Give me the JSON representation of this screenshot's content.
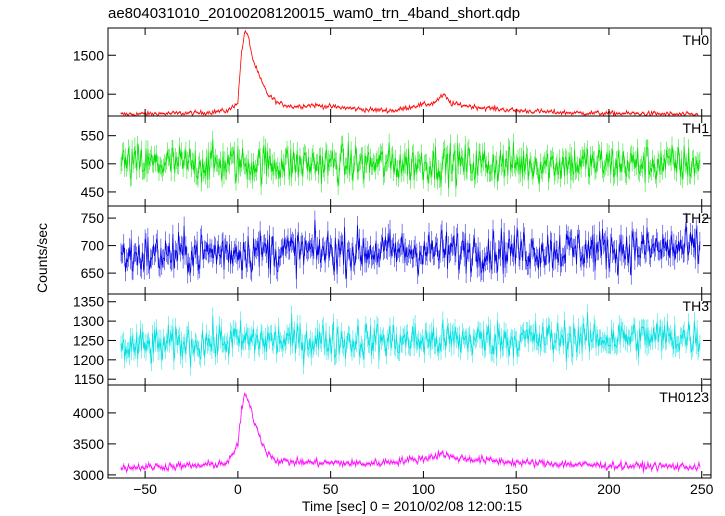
{
  "chart_data": {
    "type": "line",
    "title": "ae804031010_20100208120015_wam0_trn_4band_short.qdp",
    "xlabel": "Time [sec] 0 = 2010/02/08 12:00:15",
    "ylabel": "Counts/sec",
    "xlim": [
      -70,
      255
    ],
    "xticks": [
      -50,
      0,
      50,
      100,
      150,
      200,
      250
    ],
    "xtick_labels": [
      "−50",
      "0",
      "50",
      "100",
      "150",
      "200",
      "250"
    ],
    "panels": [
      {
        "name": "TH0",
        "color": "#ff0000",
        "ylim": [
          720,
          1850
        ],
        "yticks": [
          1000,
          1500
        ],
        "profile": [
          [
            -63,
            740
          ],
          [
            -20,
            760
          ],
          [
            -5,
            790
          ],
          [
            0,
            900
          ],
          [
            2,
            1550
          ],
          [
            4,
            1820
          ],
          [
            6,
            1700
          ],
          [
            8,
            1450
          ],
          [
            12,
            1200
          ],
          [
            16,
            1000
          ],
          [
            22,
            880
          ],
          [
            30,
            840
          ],
          [
            40,
            860
          ],
          [
            55,
            830
          ],
          [
            70,
            800
          ],
          [
            85,
            790
          ],
          [
            95,
            850
          ],
          [
            105,
            880
          ],
          [
            111,
            990
          ],
          [
            115,
            880
          ],
          [
            130,
            830
          ],
          [
            150,
            790
          ],
          [
            180,
            760
          ],
          [
            220,
            750
          ],
          [
            249,
            735
          ]
        ],
        "noise": 22
      },
      {
        "name": "TH1",
        "color": "#00e000",
        "ylim": [
          425,
          585
        ],
        "yticks": [
          450,
          500,
          550
        ],
        "profile": [
          [
            -63,
            500
          ],
          [
            249,
            500
          ]
        ],
        "noise": 25
      },
      {
        "name": "TH2",
        "color": "#0000e6",
        "ylim": [
          612,
          772
        ],
        "yticks": [
          650,
          700,
          750
        ],
        "profile": [
          [
            -63,
            680
          ],
          [
            0,
            690
          ],
          [
            100,
            690
          ],
          [
            249,
            695
          ]
        ],
        "noise": 28
      },
      {
        "name": "TH3",
        "color": "#00e0e0",
        "ylim": [
          1135,
          1370
        ],
        "yticks": [
          1150,
          1200,
          1250,
          1300,
          1350
        ],
        "profile": [
          [
            -63,
            1230
          ],
          [
            0,
            1250
          ],
          [
            100,
            1250
          ],
          [
            249,
            1260
          ]
        ],
        "noise": 35
      },
      {
        "name": "TH0123",
        "color": "#ff00ff",
        "ylim": [
          2950,
          4450
        ],
        "yticks": [
          3000,
          3500,
          4000
        ],
        "profile": [
          [
            -63,
            3120
          ],
          [
            -20,
            3150
          ],
          [
            -5,
            3200
          ],
          [
            0,
            3500
          ],
          [
            2,
            4050
          ],
          [
            4,
            4300
          ],
          [
            6,
            4150
          ],
          [
            8,
            3950
          ],
          [
            12,
            3600
          ],
          [
            16,
            3350
          ],
          [
            22,
            3220
          ],
          [
            40,
            3200
          ],
          [
            70,
            3180
          ],
          [
            100,
            3260
          ],
          [
            111,
            3350
          ],
          [
            115,
            3280
          ],
          [
            150,
            3200
          ],
          [
            200,
            3150
          ],
          [
            249,
            3130
          ]
        ],
        "noise": 45
      }
    ]
  }
}
